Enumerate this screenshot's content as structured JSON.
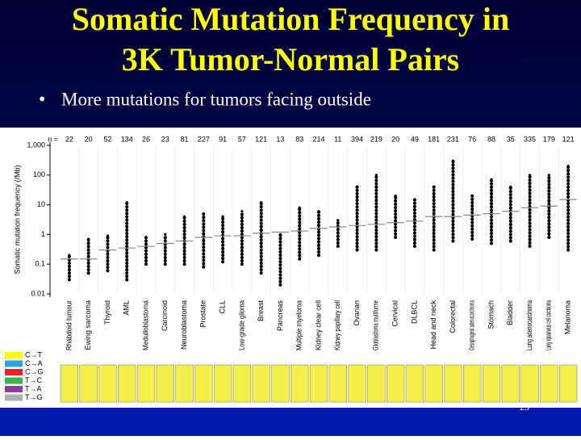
{
  "slide": {
    "title_lines": [
      "Somatic Mutation Frequency in",
      "3K Tumor-Normal Pairs"
    ],
    "bullet": "More mutations for tumors facing outside",
    "page_number": "23"
  },
  "chart_data": {
    "type": "range",
    "y_label": "Somatic mutation frequency (/Mb)",
    "log_scale": true,
    "ylim": [
      0.01,
      1000
    ],
    "yticks": [
      0.01,
      0.1,
      1,
      10,
      100,
      {
        "value": 1000,
        "label": "1,000"
      }
    ],
    "n_label": "n =",
    "categories": [
      "Rhabdoid tumour",
      "Ewing sarcoma",
      "Thyroid",
      "AML",
      "Medulloblastoma",
      "Carcinoid",
      "Neuroblastoma",
      "Prostate",
      "CLL",
      "Low-grade glioma",
      "Breast",
      "Pancreas",
      "Multiple myeloma",
      "Kidney clear cell",
      "Kidney papillary cell",
      "Ovarian",
      "Glioblastoma multiforme",
      "Cervical",
      "DLBCL",
      "Head and neck",
      "Colorectal",
      "Oesophageal adenocarcinoma",
      "Stomach",
      "Bladder",
      "Lung adenocarcinoma",
      "Lung squamous cell carcinoma",
      "Melanoma"
    ],
    "n": [
      22,
      20,
      52,
      134,
      26,
      23,
      81,
      227,
      91,
      57,
      121,
      13,
      83,
      214,
      11,
      394,
      219,
      20,
      49,
      181,
      231,
      76,
      88,
      35,
      335,
      179,
      121
    ],
    "series": [
      {
        "name": "min",
        "color": "#000000",
        "values": [
          0.03,
          0.05,
          0.06,
          0.03,
          0.1,
          0.1,
          0.1,
          0.08,
          0.12,
          0.1,
          0.05,
          0.02,
          0.15,
          0.2,
          0.4,
          0.3,
          0.3,
          0.8,
          0.4,
          0.3,
          0.6,
          0.7,
          0.5,
          0.6,
          0.4,
          0.8,
          0.3
        ]
      },
      {
        "name": "median",
        "color": "#888888",
        "values": [
          0.15,
          0.15,
          0.3,
          0.35,
          0.4,
          0.5,
          0.6,
          0.8,
          0.9,
          0.9,
          1.1,
          1.2,
          1.3,
          1.6,
          1.8,
          2,
          2.2,
          2.5,
          2.8,
          4,
          4,
          4.5,
          5,
          6,
          8,
          9,
          15
        ]
      },
      {
        "name": "max",
        "color": "#000000",
        "values": [
          0.2,
          0.7,
          0.9,
          12,
          0.8,
          1,
          4,
          5,
          4,
          6,
          12,
          1,
          8,
          6,
          3,
          40,
          100,
          20,
          15,
          40,
          300,
          20,
          70,
          40,
          100,
          100,
          200
        ]
      }
    ],
    "legend": [
      {
        "name": "C→T",
        "color": "#ffff00"
      },
      {
        "name": "C→A",
        "color": "#29a8e0"
      },
      {
        "name": "C→G",
        "color": "#e8242a"
      },
      {
        "name": "T→C",
        "color": "#3cb44b"
      },
      {
        "name": "T→A",
        "color": "#8e3fa0"
      },
      {
        "name": "T→G",
        "color": "#b0b0b0"
      }
    ]
  }
}
